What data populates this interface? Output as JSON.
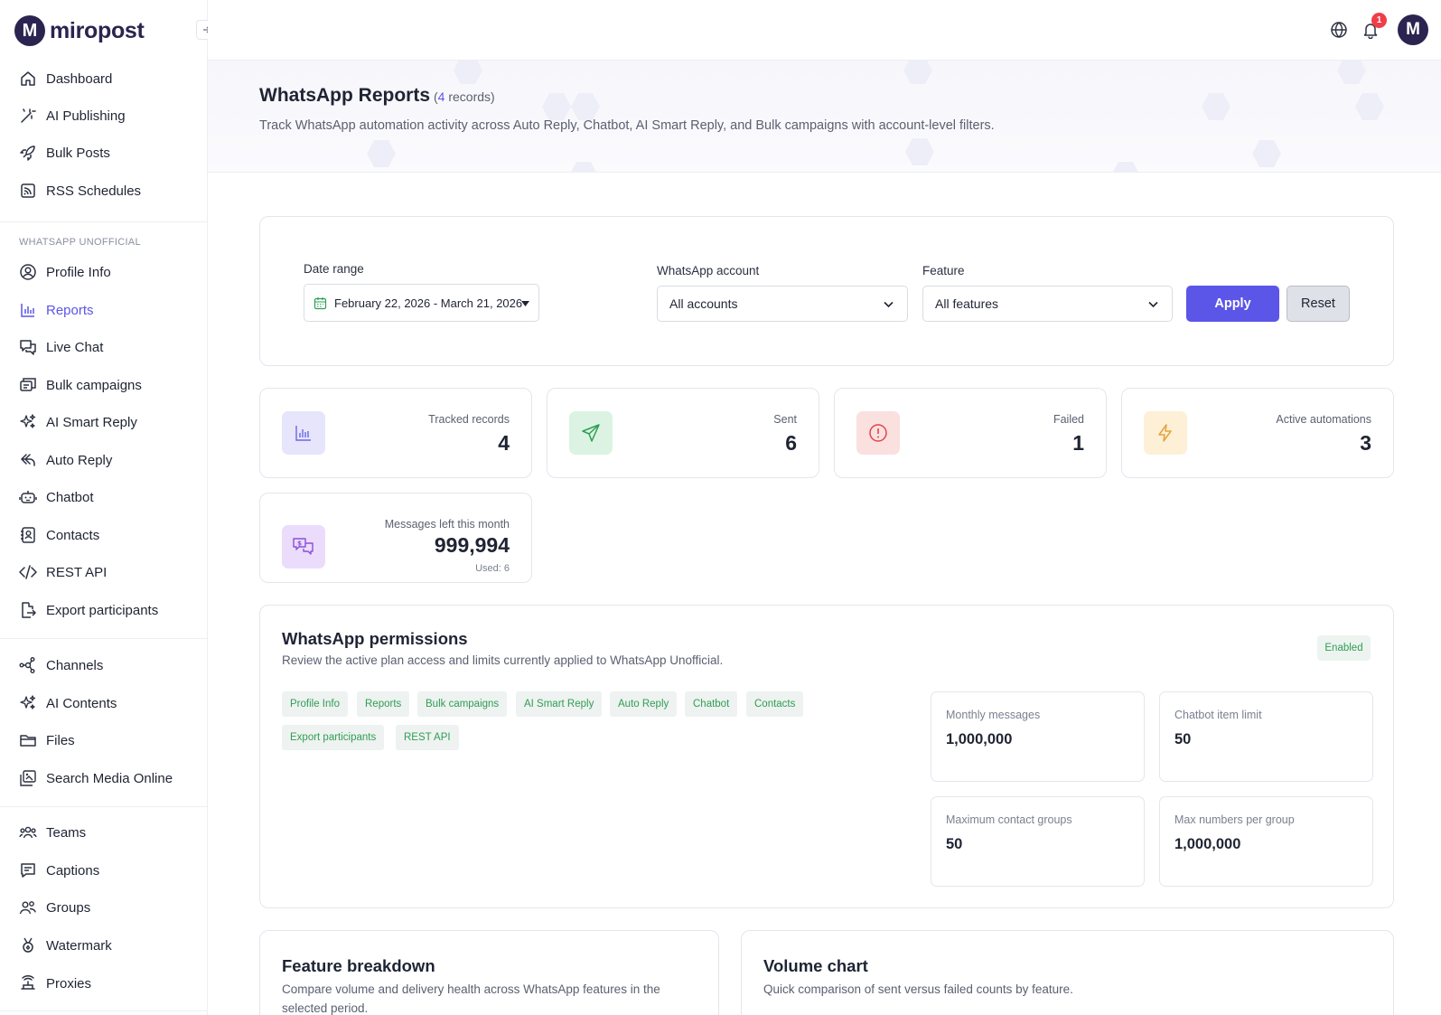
{
  "app": {
    "logo_letter": "M",
    "name": "miropost"
  },
  "sidebar": {
    "section_heading": "WHATSAPP UNOFFICIAL",
    "items": [
      {
        "label": "Dashboard",
        "icon": "home-icon"
      },
      {
        "label": "AI Publishing",
        "icon": "magic-wand-icon"
      },
      {
        "label": "Bulk Posts",
        "icon": "rocket-icon"
      },
      {
        "label": "RSS Schedules",
        "icon": "rss-icon"
      },
      {
        "label": "Profile Info",
        "icon": "user-circle-icon"
      },
      {
        "label": "Reports",
        "icon": "bar-chart-icon",
        "active": true
      },
      {
        "label": "Live Chat",
        "icon": "chat-icon"
      },
      {
        "label": "Bulk campaigns",
        "icon": "megaphone-icon"
      },
      {
        "label": "AI Smart Reply",
        "icon": "sparkles-icon"
      },
      {
        "label": "Auto Reply",
        "icon": "reply-icon"
      },
      {
        "label": "Chatbot",
        "icon": "robot-icon"
      },
      {
        "label": "Contacts",
        "icon": "contact-card-icon"
      },
      {
        "label": "REST API",
        "icon": "code-icon"
      },
      {
        "label": "Export participants",
        "icon": "export-icon"
      },
      {
        "label": "Channels",
        "icon": "network-icon"
      },
      {
        "label": "AI Contents",
        "icon": "sparkles-icon"
      },
      {
        "label": "Files",
        "icon": "folder-icon"
      },
      {
        "label": "Search Media Online",
        "icon": "images-icon"
      },
      {
        "label": "Teams",
        "icon": "team-icon"
      },
      {
        "label": "Captions",
        "icon": "caption-icon"
      },
      {
        "label": "Groups",
        "icon": "groups-icon"
      },
      {
        "label": "Watermark",
        "icon": "medal-icon"
      },
      {
        "label": "Proxies",
        "icon": "router-icon"
      }
    ]
  },
  "topbar": {
    "notification_count": "1",
    "avatar_letter": "M"
  },
  "header": {
    "title": "WhatsApp Reports",
    "count_open": "(",
    "count_number": "4",
    "count_suffix": " records)",
    "subtitle": "Track WhatsApp automation activity across Auto Reply, Chatbot, AI Smart Reply, and Bulk campaigns with account-level filters."
  },
  "filters": {
    "date_label": "Date range",
    "date_value": "February 22, 2026 - March 21, 2026",
    "account_label": "WhatsApp account",
    "account_value": "All accounts",
    "feature_label": "Feature",
    "feature_value": "All features",
    "apply_label": "Apply",
    "reset_label": "Reset"
  },
  "stats": {
    "tracked": {
      "label": "Tracked records",
      "value": "4"
    },
    "sent": {
      "label": "Sent",
      "value": "6"
    },
    "failed": {
      "label": "Failed",
      "value": "1"
    },
    "active": {
      "label": "Active automations",
      "value": "3"
    },
    "messages": {
      "label": "Messages left this month",
      "value": "999,994",
      "used": "Used: 6"
    }
  },
  "permissions": {
    "title": "WhatsApp permissions",
    "subtitle": "Review the active plan access and limits currently applied to WhatsApp Unofficial.",
    "status": "Enabled",
    "tags": [
      "Profile Info",
      "Reports",
      "Bulk campaigns",
      "AI Smart Reply",
      "Auto Reply",
      "Chatbot",
      "Contacts",
      "Export participants",
      "REST API"
    ],
    "limits": {
      "monthly": {
        "label": "Monthly messages",
        "value": "1,000,000"
      },
      "chatbot": {
        "label": "Chatbot item limit",
        "value": "50"
      },
      "groups": {
        "label": "Maximum contact groups",
        "value": "50"
      },
      "per_group": {
        "label": "Max numbers per group",
        "value": "1,000,000"
      }
    }
  },
  "breakdown": {
    "title": "Feature breakdown",
    "subtitle": "Compare volume and delivery health across WhatsApp features in the selected period."
  },
  "volume": {
    "title": "Volume chart",
    "subtitle": "Quick comparison of sent versus failed counts by feature."
  },
  "colors": {
    "accent": "#5b55e8",
    "brand": "#2b2450",
    "success": "#2f9e55",
    "danger": "#ef3e4a",
    "warning": "#e6a23c"
  }
}
